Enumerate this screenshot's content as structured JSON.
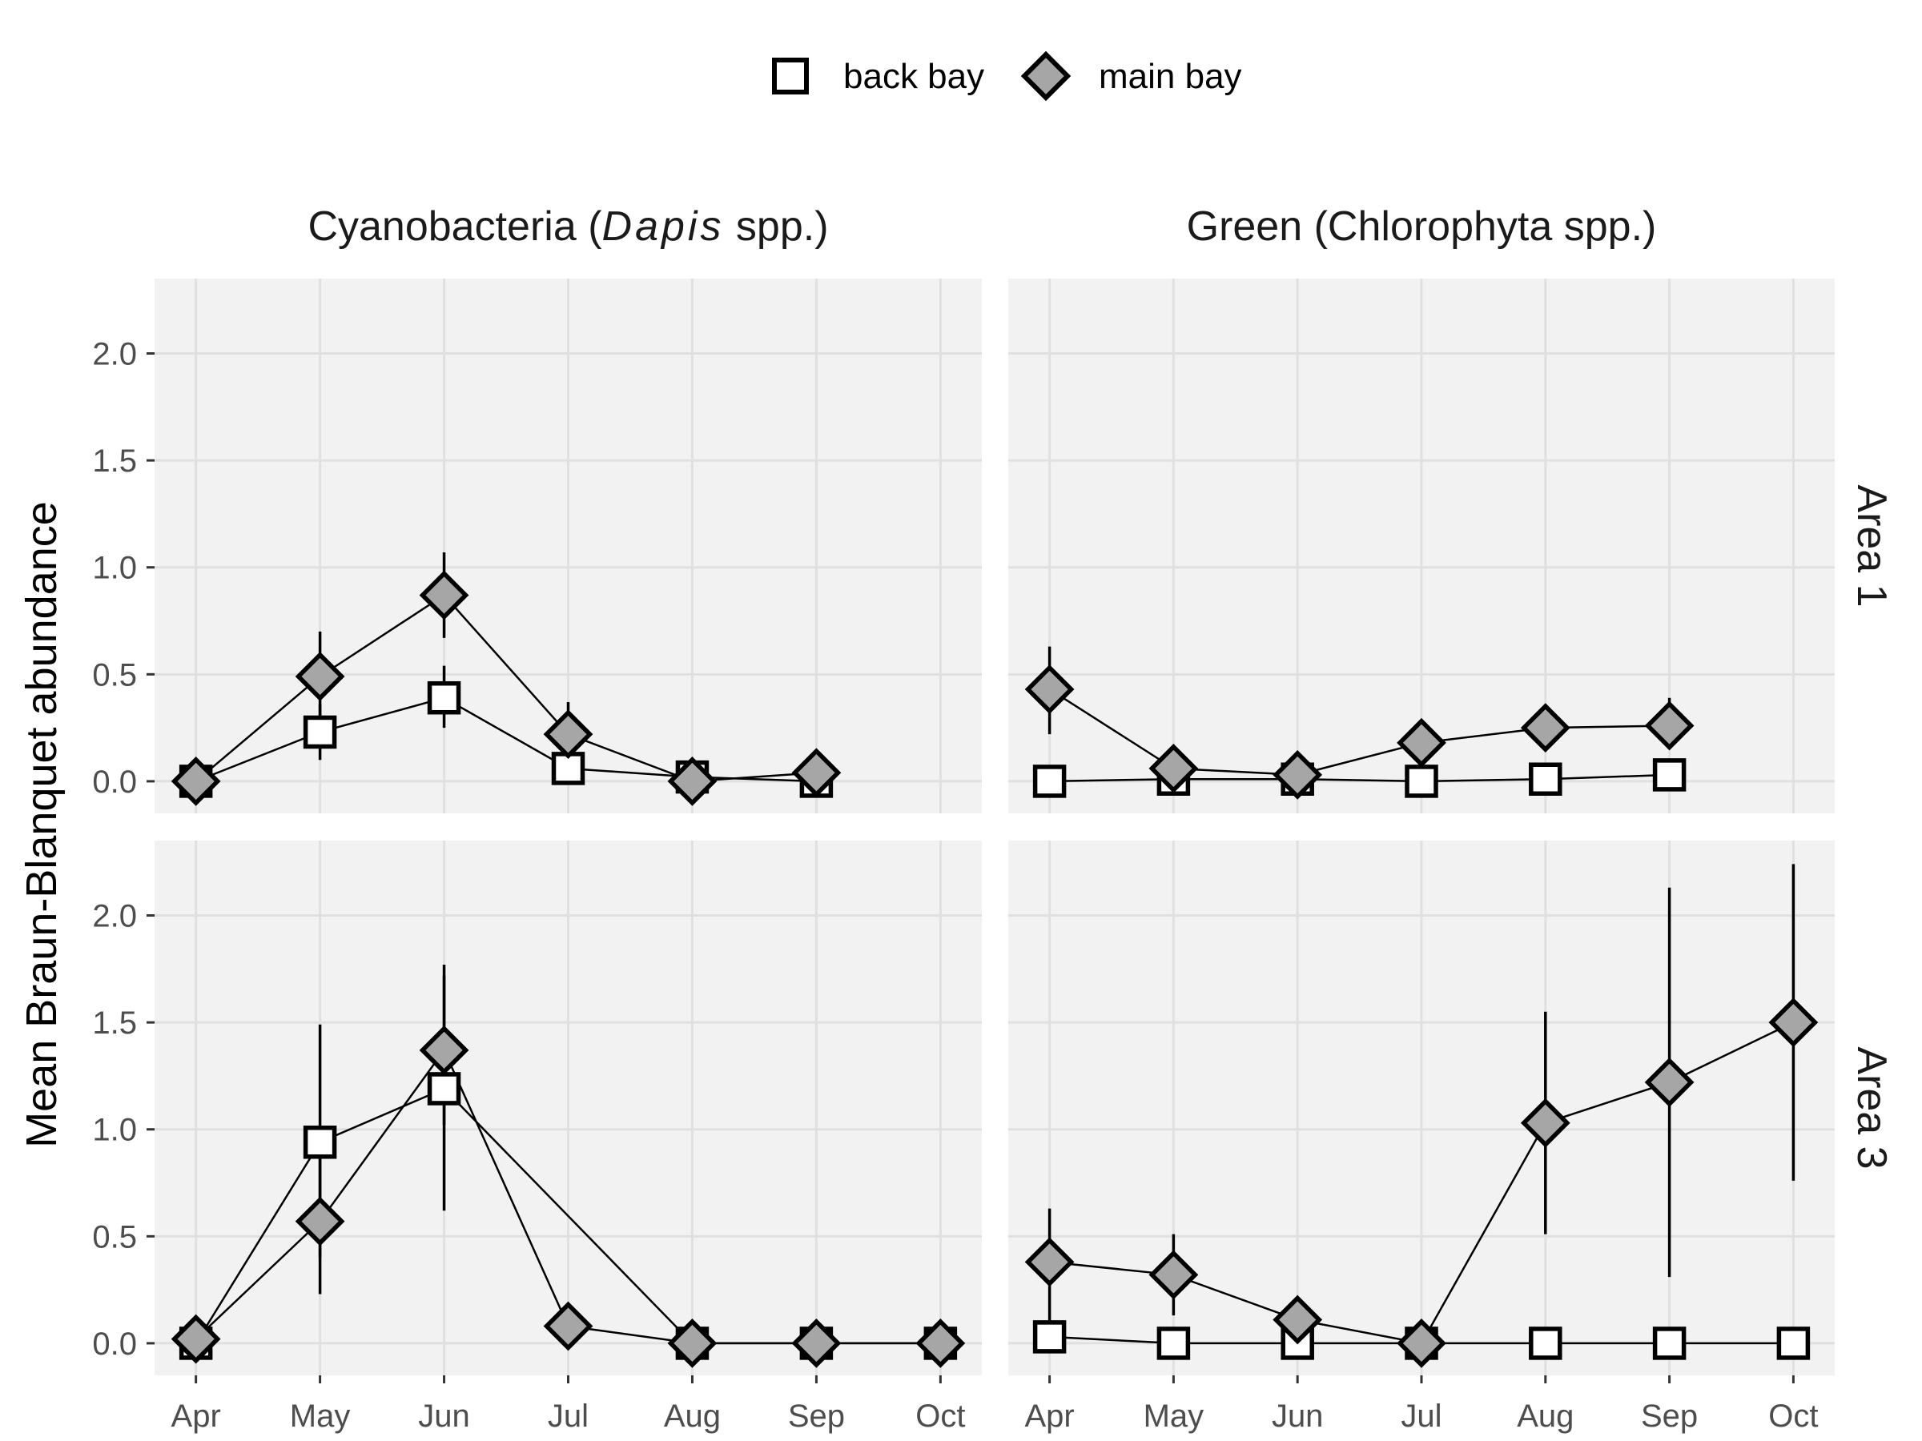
{
  "chart_data": {
    "type": "line",
    "ylabel": "Mean Braun-Blanquet abundance",
    "xlabel": "",
    "months": [
      "Apr",
      "May",
      "Jun",
      "Jul",
      "Aug",
      "Sep",
      "Oct"
    ],
    "y_ticks": [
      "0.0",
      "0.5",
      "1.0",
      "1.5",
      "2.0"
    ],
    "ylim": [
      -0.15,
      2.35
    ],
    "legend": {
      "position": "top",
      "entries": [
        {
          "name": "back bay",
          "shape": "square",
          "fill": "#ffffff"
        },
        {
          "name": "main bay",
          "shape": "diamond",
          "fill": "#a6a6a6"
        }
      ]
    },
    "columns": [
      {
        "pre": "Cyanobacteria (",
        "italic": "Dapis",
        "post": " spp.)"
      },
      {
        "pre": "Green (Chlorophyta spp.)",
        "italic": "",
        "post": ""
      }
    ],
    "rows": [
      "Area 1",
      "Area 3"
    ],
    "panels": [
      {
        "row": "Area 1",
        "column": 0,
        "series": [
          {
            "name": "back bay",
            "points": [
              {
                "x": "Apr",
                "y": 0.0
              },
              {
                "x": "May",
                "y": 0.23,
                "lo": 0.1,
                "hi": 0.36
              },
              {
                "x": "Jun",
                "y": 0.39,
                "lo": 0.25,
                "hi": 0.54
              },
              {
                "x": "Jul",
                "y": 0.06
              },
              {
                "x": "Aug",
                "y": 0.02
              },
              {
                "x": "Sep",
                "y": 0.0
              }
            ]
          },
          {
            "name": "main bay",
            "points": [
              {
                "x": "Apr",
                "y": 0.0
              },
              {
                "x": "May",
                "y": 0.49,
                "lo": 0.3,
                "hi": 0.7
              },
              {
                "x": "Jun",
                "y": 0.87,
                "lo": 0.67,
                "hi": 1.07
              },
              {
                "x": "Jul",
                "y": 0.22,
                "lo": 0.1,
                "hi": 0.37
              },
              {
                "x": "Aug",
                "y": 0.0
              },
              {
                "x": "Sep",
                "y": 0.04
              }
            ]
          }
        ]
      },
      {
        "row": "Area 1",
        "column": 1,
        "series": [
          {
            "name": "back bay",
            "points": [
              {
                "x": "Apr",
                "y": 0.0
              },
              {
                "x": "May",
                "y": 0.01
              },
              {
                "x": "Jun",
                "y": 0.01
              },
              {
                "x": "Jul",
                "y": 0.0
              },
              {
                "x": "Aug",
                "y": 0.01
              },
              {
                "x": "Sep",
                "y": 0.03
              }
            ]
          },
          {
            "name": "main bay",
            "points": [
              {
                "x": "Apr",
                "y": 0.43,
                "lo": 0.22,
                "hi": 0.63
              },
              {
                "x": "May",
                "y": 0.06
              },
              {
                "x": "Jun",
                "y": 0.03
              },
              {
                "x": "Jul",
                "y": 0.18
              },
              {
                "x": "Aug",
                "y": 0.25
              },
              {
                "x": "Sep",
                "y": 0.26,
                "lo": 0.15,
                "hi": 0.39
              }
            ]
          }
        ]
      },
      {
        "row": "Area 3",
        "column": 0,
        "series": [
          {
            "name": "back bay",
            "points": [
              {
                "x": "Apr",
                "y": 0.0
              },
              {
                "x": "May",
                "y": 0.94,
                "lo": 0.4,
                "hi": 1.49
              },
              {
                "x": "Jun",
                "y": 1.19,
                "lo": 0.62,
                "hi": 1.77
              },
              {
                "x": "Aug",
                "y": 0.0
              },
              {
                "x": "Sep",
                "y": 0.0
              },
              {
                "x": "Oct",
                "y": 0.0
              }
            ]
          },
          {
            "name": "main bay",
            "points": [
              {
                "x": "Apr",
                "y": 0.02
              },
              {
                "x": "May",
                "y": 0.57,
                "lo": 0.23,
                "hi": 0.9
              },
              {
                "x": "Jun",
                "y": 1.37,
                "lo": 1.02,
                "hi": 1.72
              },
              {
                "x": "Jul",
                "y": 0.08
              },
              {
                "x": "Aug",
                "y": 0.0
              },
              {
                "x": "Sep",
                "y": 0.0
              },
              {
                "x": "Oct",
                "y": 0.0
              }
            ]
          }
        ]
      },
      {
        "row": "Area 3",
        "column": 1,
        "series": [
          {
            "name": "back bay",
            "points": [
              {
                "x": "Apr",
                "y": 0.03
              },
              {
                "x": "May",
                "y": 0.0
              },
              {
                "x": "Jun",
                "y": 0.0
              },
              {
                "x": "Jul",
                "y": 0.0
              },
              {
                "x": "Aug",
                "y": 0.0
              },
              {
                "x": "Sep",
                "y": 0.0
              },
              {
                "x": "Oct",
                "y": 0.0
              }
            ]
          },
          {
            "name": "main bay",
            "points": [
              {
                "x": "Apr",
                "y": 0.38,
                "lo": 0.05,
                "hi": 0.63
              },
              {
                "x": "May",
                "y": 0.32,
                "lo": 0.13,
                "hi": 0.51
              },
              {
                "x": "Jun",
                "y": 0.11
              },
              {
                "x": "Jul",
                "y": 0.0
              },
              {
                "x": "Aug",
                "y": 1.03,
                "lo": 0.51,
                "hi": 1.55
              },
              {
                "x": "Sep",
                "y": 1.22,
                "lo": 0.31,
                "hi": 2.13
              },
              {
                "x": "Oct",
                "y": 1.5,
                "lo": 0.76,
                "hi": 2.24
              }
            ]
          }
        ]
      }
    ]
  }
}
